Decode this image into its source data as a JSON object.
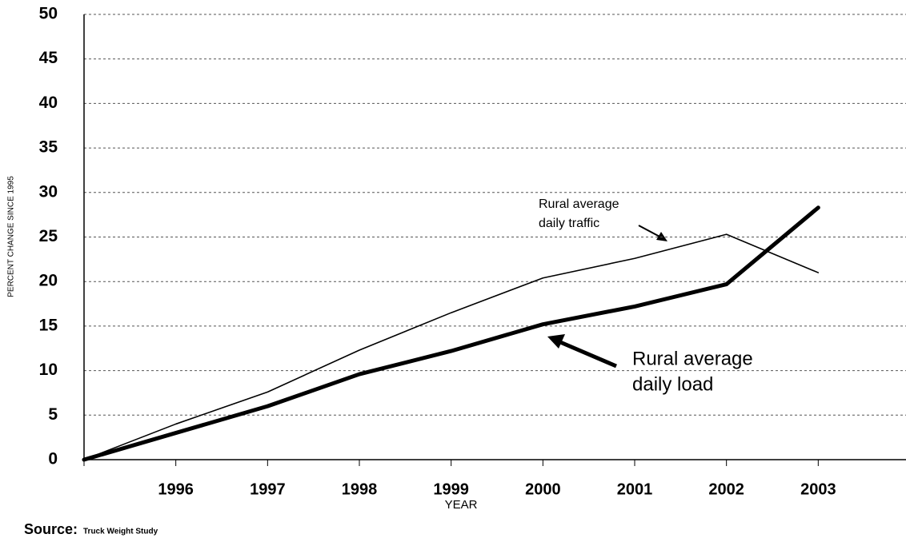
{
  "chart_data": {
    "type": "line",
    "y_label": "PERCENT CHANGE SINCE 1995",
    "x_label": "YEAR",
    "source_label": "Source:",
    "source": "Truck Weight Study",
    "x": [
      1995,
      1996,
      1997,
      1998,
      1999,
      2000,
      2001,
      2002,
      2003
    ],
    "series": [
      {
        "name": "Rural average daily traffic",
        "color": "#000000",
        "width": 1.6,
        "values": [
          0,
          4.0,
          7.6,
          12.3,
          16.5,
          20.4,
          22.6,
          25.3,
          21.0
        ]
      },
      {
        "name": "Rural average daily load",
        "color": "#000000",
        "width": 5,
        "values": [
          0,
          3.0,
          6.0,
          9.6,
          12.2,
          15.2,
          17.2,
          19.7,
          28.3
        ]
      }
    ],
    "annotations": [
      {
        "lines": [
          "Rural average",
          "daily traffic"
        ]
      },
      {
        "lines": [
          "Rural average",
          "daily load"
        ]
      }
    ],
    "xlim": [
      1995,
      2004
    ],
    "xticks": [
      1996,
      1997,
      1998,
      1999,
      2000,
      2001,
      2002,
      2003
    ],
    "ylim": [
      0,
      50
    ],
    "yticks": [
      0,
      5,
      10,
      15,
      20,
      25,
      30,
      35,
      40,
      45,
      50
    ],
    "grid": true
  }
}
